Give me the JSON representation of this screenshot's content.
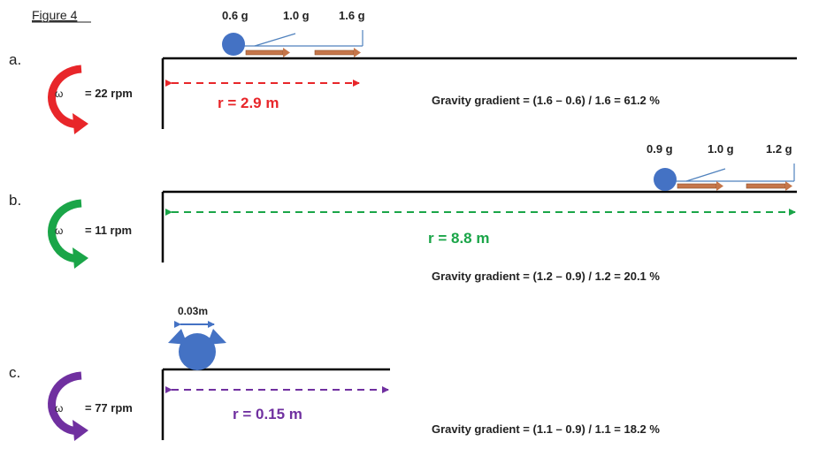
{
  "figure_title": "Figure 4",
  "omega_symbol": "ω",
  "panels": [
    {
      "letter": "a.",
      "omega_value": "= 22 rpm",
      "radius_label": "r = 2.9 m",
      "gradient_text": "Gravity gradient = (1.6 – 0.6) / 1.6 = 61.2 %",
      "g_labels": [
        "0.6 g",
        "1.0 g",
        "1.6 g"
      ],
      "color": "#e8262a"
    },
    {
      "letter": "b.",
      "omega_value": "= 11 rpm",
      "radius_label": "r = 8.8 m",
      "gradient_text": "Gravity gradient = (1.2 – 0.9) / 1.2 = 20.1 %",
      "g_labels": [
        "0.9 g",
        "1.0 g",
        "1.2 g"
      ],
      "color": "#1aa548"
    },
    {
      "letter": "c.",
      "omega_value": "= 77 rpm",
      "radius_label": "r = 0.15 m",
      "gradient_text": "Gravity gradient = (1.1 – 0.9) / 1.1 = 18.2 %",
      "size_label": "0.03m",
      "color": "#7030a0"
    }
  ],
  "colors": {
    "ball": "#4472c4",
    "vector_arrow": "#c5764a",
    "scale_line": "#4f81bd",
    "floor": "#000000"
  }
}
